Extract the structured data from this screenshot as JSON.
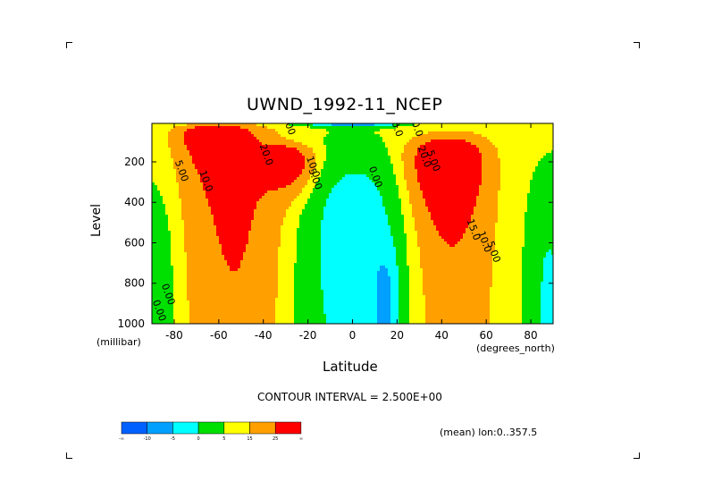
{
  "chart_data": {
    "type": "heatmap",
    "title": "UWND_1992-11_NCEP",
    "xlabel": "Latitude",
    "ylabel": "Level",
    "x_units": "(degrees_north)",
    "y_units": "(millibar)",
    "xlim": [
      -90,
      90
    ],
    "ylim": [
      1000,
      10
    ],
    "x_ticks": [
      -80,
      -60,
      -40,
      -20,
      0,
      20,
      40,
      60,
      80
    ],
    "y_ticks": [
      200,
      400,
      600,
      800,
      1000
    ],
    "contour_interval_text": "CONTOUR INTERVAL = 2.500E+00",
    "mean_text": "(mean) lon:0..357.5",
    "colorbar": {
      "bounds": [
        -30,
        -20,
        -10,
        -5,
        0,
        5,
        15,
        25,
        30
      ],
      "labels": [
        "-∞",
        "-10",
        "-5",
        "0",
        "5",
        "15",
        "25",
        "∞"
      ],
      "colors": [
        "#0060ff",
        "#00a0ff",
        "#00ffff",
        "#00e000",
        "#ffff00",
        "#ffa000",
        "#ff0000"
      ]
    },
    "jets": [
      {
        "lat": -62,
        "level": 70,
        "peak": 27.5
      },
      {
        "lat": -30,
        "level": 200,
        "peak": 27.5
      },
      {
        "lat": 42,
        "level": 200,
        "peak": 30.0
      }
    ],
    "contour_labels": [
      {
        "text": "5.00",
        "lat": -78,
        "level": 250
      },
      {
        "text": "10.0",
        "lat": -67,
        "level": 300
      },
      {
        "text": "20.0",
        "lat": -40,
        "level": 170
      },
      {
        "text": "10.0",
        "lat": -19,
        "level": 230
      },
      {
        "text": "5.00",
        "lat": -18,
        "level": 290
      },
      {
        "text": "0.00",
        "lat": 9,
        "level": 280
      },
      {
        "text": "20.0",
        "lat": 31,
        "level": 180
      },
      {
        "text": "5.00",
        "lat": 35,
        "level": 200
      },
      {
        "text": "15.0",
        "lat": 53,
        "level": 540
      },
      {
        "text": "10.0",
        "lat": 58,
        "level": 600
      },
      {
        "text": "5.00",
        "lat": 62,
        "level": 650
      },
      {
        "text": "5.00",
        "lat": -30,
        "level": 20
      },
      {
        "text": "-10.0",
        "lat": 18,
        "level": 20
      },
      {
        "text": "-10.0",
        "lat": 27,
        "level": 20
      },
      {
        "text": "0.00",
        "lat": -84,
        "level": 860
      },
      {
        "text": "0.00",
        "lat": -88,
        "level": 940
      }
    ]
  }
}
